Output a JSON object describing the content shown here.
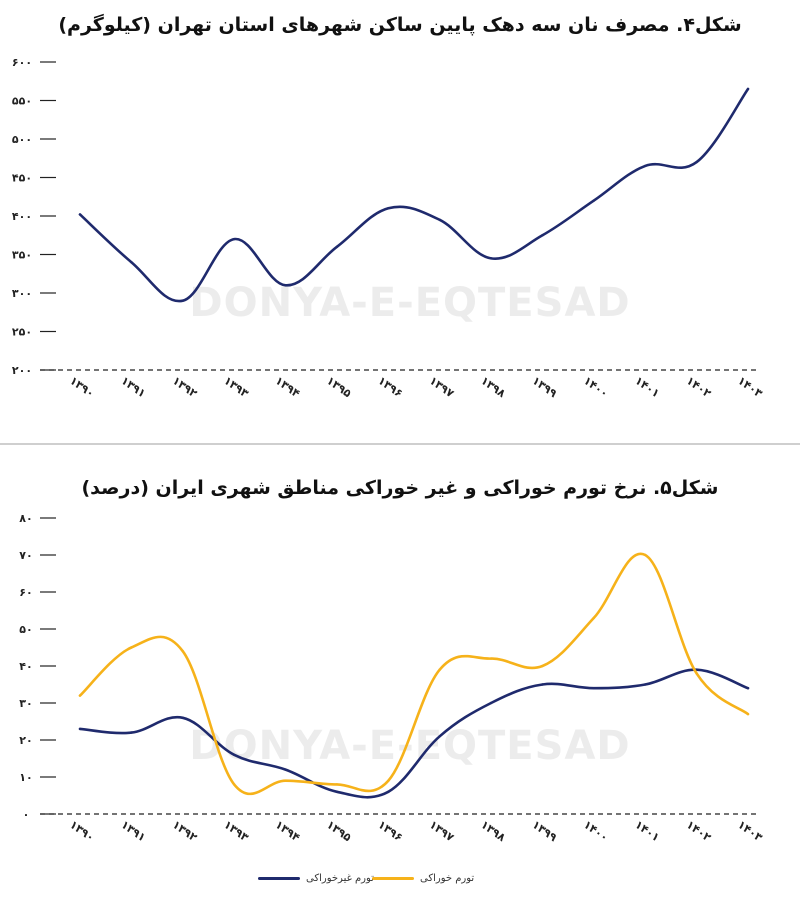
{
  "watermark": "DONYA-E-EQTESAD",
  "colors": {
    "navy": "#1f2a6d",
    "yellow": "#f6b21a",
    "grid": "#222222"
  },
  "chart_data": [
    {
      "type": "line",
      "title": "شکل۴. مصرف نان سه دهک پایین ساکن شهرهای استان تهران (کیلوگرم)",
      "categories": [
        "۱۳۹۰",
        "۱۳۹۱",
        "۱۳۹۲",
        "۱۳۹۳",
        "۱۳۹۴",
        "۱۳۹۵",
        "۱۳۹۶",
        "۱۳۹۷",
        "۱۳۹۸",
        "۱۳۹۹",
        "۱۴۰۰",
        "۱۴۰۱",
        "۱۴۰۲",
        "۱۴۰۳"
      ],
      "y_ticks": [
        "۲۰۰",
        "۲۵۰",
        "۳۰۰",
        "۳۵۰",
        "۴۰۰",
        "۴۵۰",
        "۵۰۰",
        "۵۵۰",
        "۶۰۰"
      ],
      "ylim": [
        200,
        600
      ],
      "series": [
        {
          "name": "",
          "color": "#1f2a6d",
          "values": [
            402,
            340,
            290,
            370,
            310,
            360,
            410,
            395,
            345,
            375,
            420,
            465,
            470,
            565
          ]
        }
      ],
      "xlabel": "",
      "ylabel": "",
      "grid": false
    },
    {
      "type": "line",
      "title": "شکل۵. نرخ تورم خوراکی و غیر خوراکی مناطق شهری ایران (درصد)",
      "categories": [
        "۱۳۹۰",
        "۱۳۹۱",
        "۱۳۹۲",
        "۱۳۹۳",
        "۱۳۹۴",
        "۱۳۹۵",
        "۱۳۹۶",
        "۱۳۹۷",
        "۱۳۹۸",
        "۱۳۹۹",
        "۱۴۰۰",
        "۱۴۰۱",
        "۱۴۰۲",
        "۱۴۰۳"
      ],
      "y_ticks": [
        "۰",
        "۱۰",
        "۲۰",
        "۳۰",
        "۴۰",
        "۵۰",
        "۶۰",
        "۷۰",
        "۸۰"
      ],
      "ylim": [
        0,
        80
      ],
      "series": [
        {
          "name": "تورم غیرخوراکی",
          "color": "#1f2a6d",
          "values": [
            23,
            22,
            26,
            16,
            12,
            6,
            6,
            21,
            30,
            35,
            34,
            35,
            39,
            34
          ]
        },
        {
          "name": "تورم خوراکی",
          "color": "#f6b21a",
          "values": [
            32,
            45,
            44,
            8,
            9,
            8,
            9,
            39,
            42,
            40,
            53,
            70,
            38,
            27
          ]
        }
      ],
      "legend_position": "bottom-center",
      "xlabel": "",
      "ylabel": "",
      "grid": false
    }
  ]
}
